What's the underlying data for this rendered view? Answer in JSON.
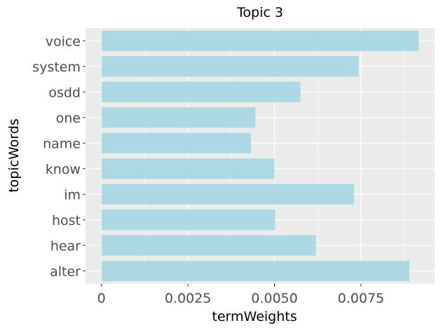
{
  "chart_data": {
    "type": "bar",
    "orientation": "horizontal",
    "title": "Topic 3",
    "xlabel": "termWeights",
    "ylabel": "topicWords",
    "categories": [
      "voice",
      "system",
      "osdd",
      "one",
      "name",
      "know",
      "im",
      "host",
      "hear",
      "alter"
    ],
    "values": [
      0.00917,
      0.00743,
      0.00575,
      0.00445,
      0.00432,
      0.005,
      0.0073,
      0.00502,
      0.0062,
      0.0089
    ],
    "xlim": [
      -0.00046,
      0.00963
    ],
    "xticks": [
      0,
      0.0025,
      0.005,
      0.0075
    ],
    "xtick_labels": [
      "0",
      "0.0025",
      "0.0050",
      "0.0075"
    ],
    "grid": true,
    "legend": "none",
    "colors": {
      "bar": "#add8e6",
      "panel": "#ebebeb",
      "grid": "#ffffff",
      "tick_text": "#4d4d4d",
      "tick_mark": "#333333"
    }
  }
}
